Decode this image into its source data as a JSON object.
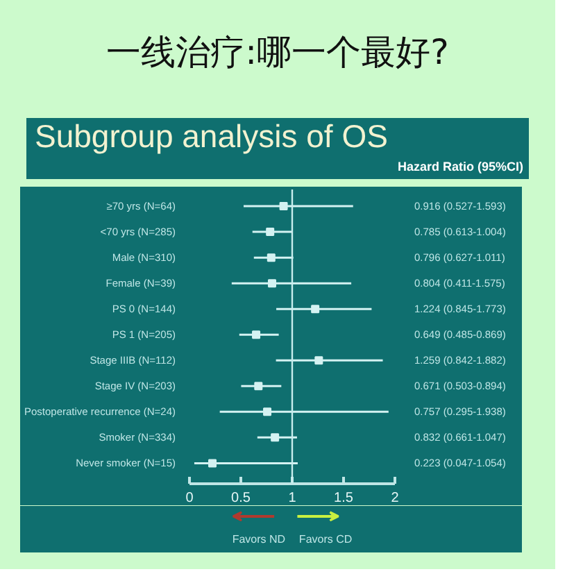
{
  "chart_data": {
    "type": "scatter",
    "orientation": "horizontal",
    "title": "一线治疗:哪一个最好?",
    "subtitle": "Subgroup analysis of OS",
    "categories": [
      "≥70 yrs (N=64)",
      "<70 yrs (N=285)",
      "Male (N=310)",
      "Female (N=39)",
      "PS 0 (N=144)",
      "PS 1 (N=205)",
      "Stage IIIB (N=112)",
      "Stage IV (N=203)",
      "Postoperative recurrence (N=24)",
      "Smoker (N=334)",
      "Never smoker (N=15)"
    ],
    "values": [
      0.916,
      0.785,
      0.796,
      0.804,
      1.224,
      0.649,
      1.259,
      0.671,
      0.757,
      0.832,
      0.223
    ],
    "errors": [
      [
        0.527,
        1.593
      ],
      [
        0.613,
        1.004
      ],
      [
        0.627,
        1.011
      ],
      [
        0.411,
        1.575
      ],
      [
        0.845,
        1.773
      ],
      [
        0.485,
        0.869
      ],
      [
        0.842,
        1.882
      ],
      [
        0.503,
        0.894
      ],
      [
        0.295,
        1.938
      ],
      [
        0.661,
        1.047
      ],
      [
        0.047,
        1.054
      ]
    ],
    "value_labels": [
      "0.916 (0.527-1.593)",
      "0.785 (0.613-1.004)",
      "0.796 (0.627-1.011)",
      "0.804 (0.411-1.575)",
      "1.224 (0.845-1.773)",
      "0.649 (0.485-0.869)",
      "1.259 (0.842-1.882)",
      "0.671 (0.503-0.894)",
      "0.757 (0.295-1.938)",
      "0.832 (0.661-1.047)",
      "0.223 (0.047-1.054)"
    ],
    "color": "#d4f2f2",
    "marker": "square",
    "xlim": [
      0,
      2
    ],
    "xticks": [
      0,
      0.5,
      1,
      1.5,
      2
    ],
    "ref_lines": [
      {
        "axis": "x",
        "value": 1,
        "color": "#c8eeee"
      }
    ],
    "annotations": [
      "Hazard Ratio (95%CI)",
      "Favors ND",
      "Favors CD"
    ]
  }
}
